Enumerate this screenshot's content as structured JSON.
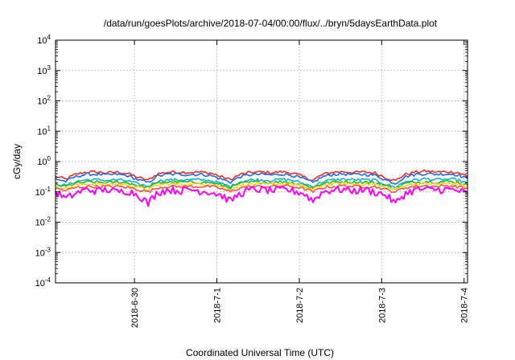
{
  "chart_data": {
    "type": "line",
    "title": "/data/run/goesPlots/archive/2018-07-04/00:00/flux/../bryn/5daysEarthData.plot",
    "xlabel": "Coordinated Universal Time (UTC)",
    "ylabel": "cGy/day",
    "yscale": "log",
    "ylim": [
      0.0001,
      10000
    ],
    "yticks": [
      {
        "base": "10",
        "exp": "4",
        "value": 10000
      },
      {
        "base": "10",
        "exp": "3",
        "value": 1000
      },
      {
        "base": "10",
        "exp": "2",
        "value": 100
      },
      {
        "base": "10",
        "exp": "1",
        "value": 10
      },
      {
        "base": "10",
        "exp": "0",
        "value": 1
      },
      {
        "base": "10",
        "exp": "-1",
        "value": 0.1
      },
      {
        "base": "10",
        "exp": "-2",
        "value": 0.01
      },
      {
        "base": "10",
        "exp": "-3",
        "value": 0.001
      },
      {
        "base": "10",
        "exp": "-4",
        "value": 0.0001
      }
    ],
    "xlim": [
      "2018-06-29T01:00",
      "2018-07-04T01:00"
    ],
    "xticks": [
      "2018-6-30",
      "2018-7-1",
      "2018-7-2",
      "2018-7-3",
      "2018-7-4"
    ],
    "grid": true,
    "x": [
      "2018-06-29T01:00",
      "2018-06-29T04:00",
      "2018-06-29T07:00",
      "2018-06-29T10:00",
      "2018-06-29T13:00",
      "2018-06-29T16:00",
      "2018-06-29T19:00",
      "2018-06-29T22:00",
      "2018-06-30T01:00",
      "2018-06-30T04:00",
      "2018-06-30T07:00",
      "2018-06-30T10:00",
      "2018-06-30T13:00",
      "2018-06-30T16:00",
      "2018-06-30T19:00",
      "2018-06-30T22:00",
      "2018-07-01T01:00",
      "2018-07-01T04:00",
      "2018-07-01T07:00",
      "2018-07-01T10:00",
      "2018-07-01T13:00",
      "2018-07-01T16:00",
      "2018-07-01T19:00",
      "2018-07-01T22:00",
      "2018-07-02T01:00",
      "2018-07-02T04:00",
      "2018-07-02T07:00",
      "2018-07-02T10:00",
      "2018-07-02T13:00",
      "2018-07-02T16:00",
      "2018-07-02T19:00",
      "2018-07-02T22:00",
      "2018-07-03T01:00",
      "2018-07-03T04:00",
      "2018-07-03T07:00",
      "2018-07-03T10:00",
      "2018-07-03T13:00",
      "2018-07-03T16:00",
      "2018-07-03T19:00",
      "2018-07-03T22:00",
      "2018-07-04T01:00"
    ],
    "series": [
      {
        "color": "#ff2a1a",
        "values": [
          0.32,
          0.26,
          0.38,
          0.45,
          0.45,
          0.42,
          0.45,
          0.4,
          0.3,
          0.24,
          0.4,
          0.45,
          0.45,
          0.44,
          0.45,
          0.42,
          0.32,
          0.25,
          0.38,
          0.44,
          0.45,
          0.43,
          0.46,
          0.42,
          0.32,
          0.24,
          0.38,
          0.45,
          0.46,
          0.44,
          0.45,
          0.42,
          0.3,
          0.23,
          0.38,
          0.45,
          0.48,
          0.45,
          0.46,
          0.44,
          0.32
        ]
      },
      {
        "color": "#1a6bff",
        "values": [
          0.27,
          0.22,
          0.32,
          0.38,
          0.38,
          0.36,
          0.38,
          0.34,
          0.25,
          0.2,
          0.34,
          0.38,
          0.38,
          0.37,
          0.38,
          0.35,
          0.27,
          0.21,
          0.32,
          0.37,
          0.38,
          0.36,
          0.39,
          0.35,
          0.27,
          0.2,
          0.32,
          0.38,
          0.39,
          0.37,
          0.38,
          0.35,
          0.25,
          0.19,
          0.32,
          0.38,
          0.4,
          0.38,
          0.39,
          0.37,
          0.27
        ]
      },
      {
        "color": "#1ab0d8",
        "values": [
          0.19,
          0.16,
          0.22,
          0.25,
          0.25,
          0.24,
          0.25,
          0.23,
          0.18,
          0.15,
          0.23,
          0.25,
          0.25,
          0.25,
          0.25,
          0.24,
          0.19,
          0.15,
          0.22,
          0.25,
          0.25,
          0.24,
          0.26,
          0.24,
          0.19,
          0.15,
          0.22,
          0.25,
          0.26,
          0.25,
          0.25,
          0.24,
          0.18,
          0.14,
          0.22,
          0.25,
          0.27,
          0.25,
          0.26,
          0.25,
          0.19
        ]
      },
      {
        "color": "#22bb22",
        "values": [
          0.17,
          0.15,
          0.19,
          0.21,
          0.21,
          0.2,
          0.21,
          0.2,
          0.16,
          0.14,
          0.2,
          0.21,
          0.21,
          0.21,
          0.21,
          0.2,
          0.17,
          0.14,
          0.19,
          0.21,
          0.21,
          0.2,
          0.22,
          0.2,
          0.17,
          0.14,
          0.19,
          0.21,
          0.22,
          0.21,
          0.21,
          0.2,
          0.16,
          0.13,
          0.19,
          0.21,
          0.22,
          0.21,
          0.22,
          0.21,
          0.17
        ]
      },
      {
        "color": "#ffd21a",
        "values": [
          0.15,
          0.13,
          0.17,
          0.18,
          0.18,
          0.18,
          0.18,
          0.17,
          0.14,
          0.12,
          0.17,
          0.18,
          0.18,
          0.18,
          0.18,
          0.18,
          0.15,
          0.12,
          0.17,
          0.18,
          0.18,
          0.18,
          0.19,
          0.18,
          0.15,
          0.12,
          0.17,
          0.18,
          0.19,
          0.18,
          0.18,
          0.18,
          0.14,
          0.12,
          0.17,
          0.18,
          0.19,
          0.18,
          0.19,
          0.18,
          0.15
        ]
      },
      {
        "color": "#ff5050",
        "values": [
          0.13,
          0.11,
          0.14,
          0.15,
          0.15,
          0.15,
          0.15,
          0.14,
          0.12,
          0.1,
          0.14,
          0.15,
          0.15,
          0.15,
          0.15,
          0.15,
          0.13,
          0.1,
          0.14,
          0.15,
          0.15,
          0.15,
          0.16,
          0.15,
          0.13,
          0.1,
          0.14,
          0.15,
          0.16,
          0.15,
          0.15,
          0.15,
          0.12,
          0.1,
          0.14,
          0.15,
          0.16,
          0.15,
          0.16,
          0.15,
          0.13
        ]
      },
      {
        "color": "#ff00ff",
        "values": [
          0.1,
          0.06,
          0.09,
          0.12,
          0.11,
          0.12,
          0.1,
          0.11,
          0.08,
          0.04,
          0.1,
          0.12,
          0.11,
          0.12,
          0.11,
          0.1,
          0.08,
          0.05,
          0.09,
          0.12,
          0.12,
          0.11,
          0.12,
          0.11,
          0.09,
          0.05,
          0.1,
          0.12,
          0.12,
          0.11,
          0.12,
          0.1,
          0.08,
          0.04,
          0.09,
          0.12,
          0.12,
          0.12,
          0.12,
          0.11,
          0.09
        ]
      }
    ]
  }
}
